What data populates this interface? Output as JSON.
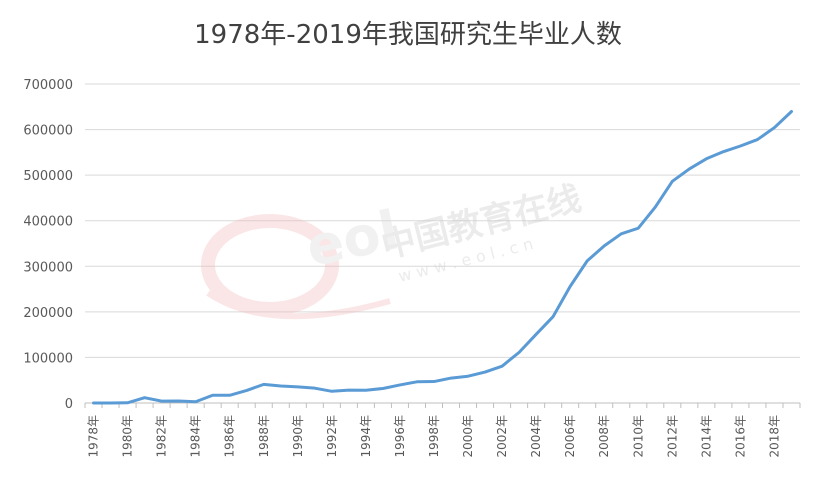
{
  "chart_data": {
    "type": "line",
    "title": "1978年-2019年我国研究生毕业人数",
    "xlabel": "",
    "ylabel": "",
    "ylim": [
      0,
      700000
    ],
    "yticks": [
      "0",
      "100000",
      "200000",
      "300000",
      "400000",
      "500000",
      "600000",
      "700000"
    ],
    "xtick_labels": [
      "1978年",
      "1980年",
      "1982年",
      "1984年",
      "1986年",
      "1988年",
      "1990年",
      "1992年",
      "1994年",
      "1996年",
      "1998年",
      "2000年",
      "2002年",
      "2004年",
      "2006年",
      "2008年",
      "2010年",
      "2012年",
      "2014年",
      "2016年",
      "2018年"
    ],
    "grid": true,
    "legend": "none",
    "line_color": "#5b9bd5",
    "x": [
      "1978年",
      "1979年",
      "1980年",
      "1981年",
      "1982年",
      "1983年",
      "1984年",
      "1985年",
      "1986年",
      "1987年",
      "1988年",
      "1989年",
      "1990年",
      "1991年",
      "1992年",
      "1993年",
      "1994年",
      "1995年",
      "1996年",
      "1997年",
      "1998年",
      "1999年",
      "2000年",
      "2001年",
      "2002年",
      "2003年",
      "2004年",
      "2005年",
      "2006年",
      "2007年",
      "2008年",
      "2009年",
      "2010年",
      "2011年",
      "2012年",
      "2013年",
      "2014年",
      "2015年",
      "2016年",
      "2017年",
      "2018年",
      "2019年"
    ],
    "series": [
      {
        "values": [
          9,
          140,
          476,
          11669,
          4058,
          4497,
          2756,
          17004,
          16950,
          27603,
          40838,
          37232,
          35440,
          32537,
          25692,
          28214,
          28047,
          31877,
          39652,
          46539,
          47077,
          54670,
          58767,
          67809,
          80841,
          111091,
          150777,
          189728,
          255902,
          311839,
          344825,
          371273,
          383600,
          429994,
          486455,
          513626,
          535863,
          551522,
          563938,
          578045,
          604368,
          639666
        ]
      }
    ]
  },
  "watermark": {
    "text": "中国教育在线",
    "url": "w w w . e o l . c n",
    "logo": "eol"
  }
}
